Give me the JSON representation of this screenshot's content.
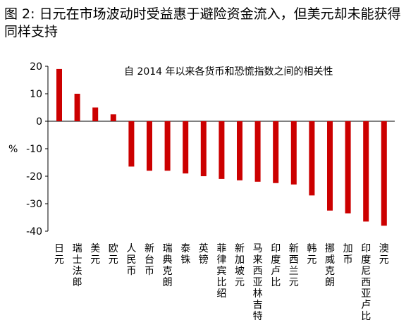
{
  "figure": {
    "title": "图 2:  日元在市场波动时受益惠于避险资金流入，但美元却未能获得同样支持"
  },
  "chart_data": {
    "type": "bar",
    "subtitle": "自 2014 年以来各货币和恐慌指数之间的相关性",
    "ylabel": "%",
    "ylim": [
      -40,
      20
    ],
    "yticks": [
      20,
      10,
      0,
      -10,
      -20,
      -30,
      -40
    ],
    "grid": false,
    "categories": [
      "日元",
      "瑞士法郎",
      "美元",
      "欧元",
      "人民币",
      "新台币",
      "瑞典克朗",
      "泰铢",
      "英镑",
      "菲律宾比绍",
      "新加坡元",
      "马来西亚林吉特",
      "印度卢比",
      "新西兰元",
      "韩元",
      "挪威克朗",
      "加币",
      "印度尼西亚卢比",
      "澳元"
    ],
    "values": [
      19,
      10,
      5,
      2.5,
      -16.5,
      -18,
      -18,
      -19,
      -20,
      -21,
      -21.5,
      -22,
      -22.5,
      -23,
      -27,
      -32.5,
      -33.5,
      -36.5,
      -38
    ],
    "colors": {
      "bar": "#cc0000",
      "axis": "#000000"
    }
  }
}
